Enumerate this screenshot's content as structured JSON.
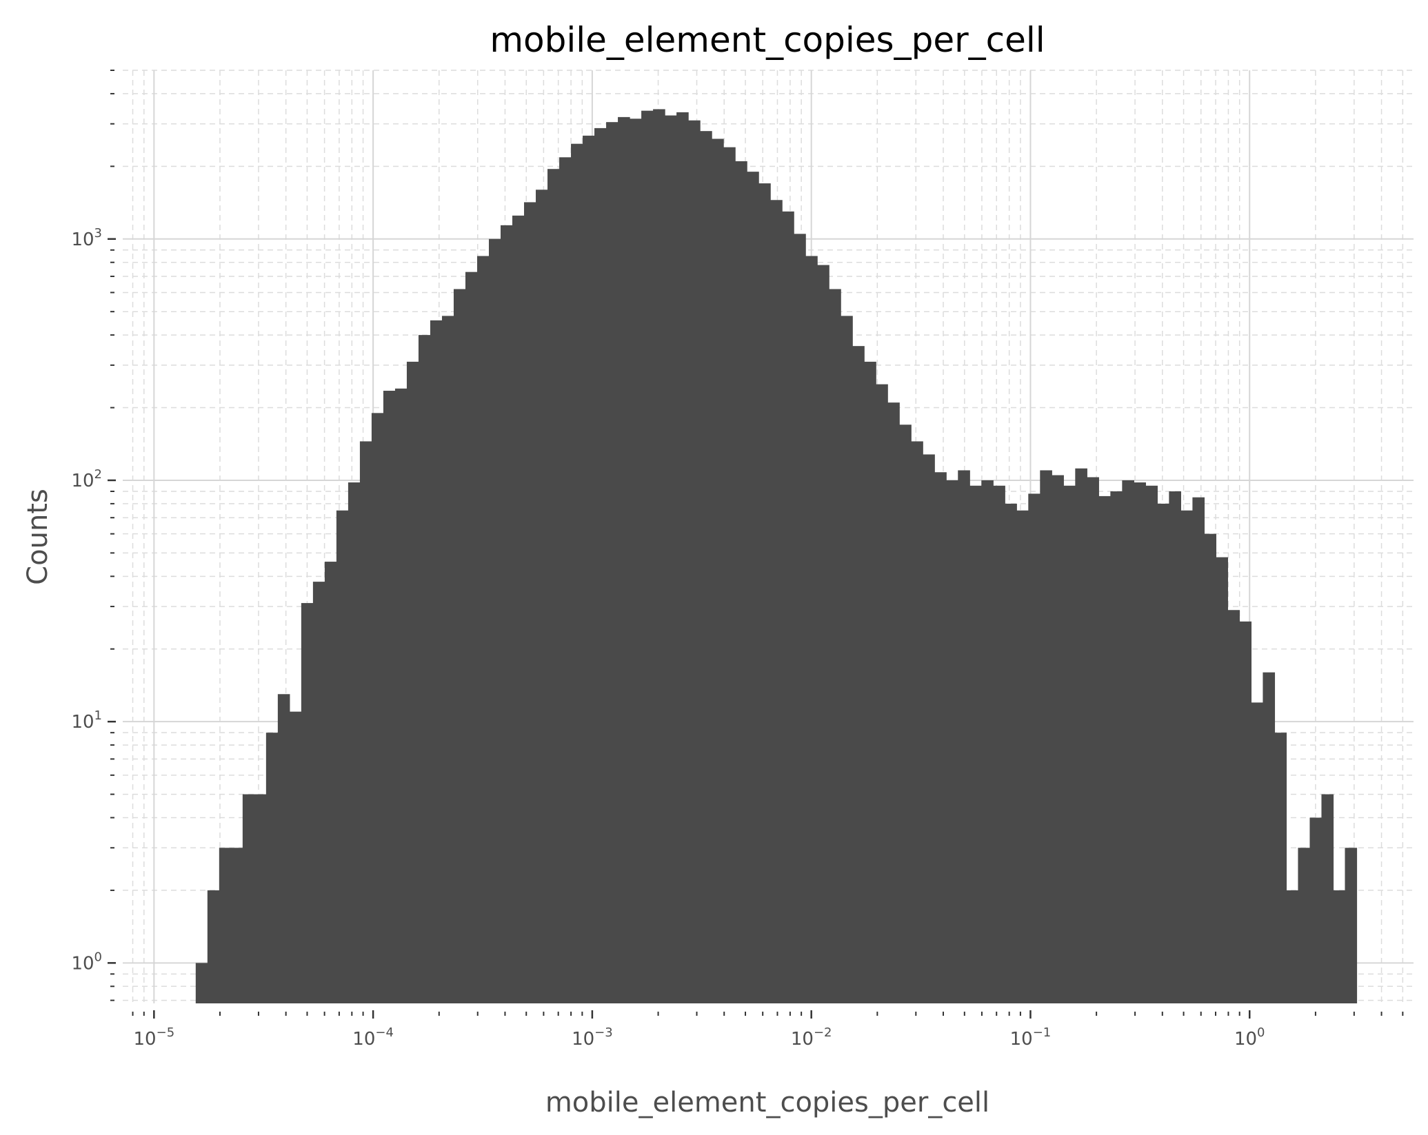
{
  "chart_data": {
    "type": "bar",
    "title": "mobile_element_copies_per_cell",
    "xlabel": "mobile_element_copies_per_cell",
    "ylabel": "Counts",
    "x_scale": "log",
    "y_scale": "log",
    "xlim": [
      7.2e-06,
      5.6
    ],
    "ylim": [
      0.68,
      5000
    ],
    "grid": true,
    "bar_color": "#4a4a4a",
    "x_ticks": [
      {
        "base": "10",
        "exp": "−5"
      },
      {
        "base": "10",
        "exp": "−4"
      },
      {
        "base": "10",
        "exp": "−3"
      },
      {
        "base": "10",
        "exp": "−2"
      },
      {
        "base": "10",
        "exp": "−1"
      },
      {
        "base": "10",
        "exp": "0"
      }
    ],
    "y_ticks": [
      {
        "base": "10",
        "exp": "0"
      },
      {
        "base": "10",
        "exp": "1"
      },
      {
        "base": "10",
        "exp": "2"
      },
      {
        "base": "10",
        "exp": "3"
      }
    ],
    "bin_edges_range": [
      1.55e-05,
      3.08
    ],
    "counts": [
      1,
      2,
      3,
      3,
      5,
      5,
      9,
      13,
      11,
      31,
      38,
      46,
      75,
      98,
      145,
      190,
      235,
      240,
      310,
      400,
      460,
      480,
      620,
      730,
      850,
      1000,
      1140,
      1250,
      1420,
      1600,
      1950,
      2180,
      2480,
      2680,
      2880,
      3050,
      3200,
      3150,
      3400,
      3450,
      3250,
      3350,
      3100,
      2800,
      2600,
      2400,
      2100,
      1900,
      1700,
      1450,
      1300,
      1050,
      850,
      780,
      620,
      480,
      360,
      310,
      250,
      210,
      170,
      145,
      128,
      108,
      100,
      110,
      95,
      100,
      95,
      80,
      75,
      88,
      110,
      105,
      95,
      112,
      103,
      86,
      90,
      100,
      98,
      95,
      80,
      90,
      75,
      85,
      60,
      48,
      29,
      26,
      12,
      16,
      9,
      2,
      3,
      4,
      5,
      2,
      3
    ]
  }
}
